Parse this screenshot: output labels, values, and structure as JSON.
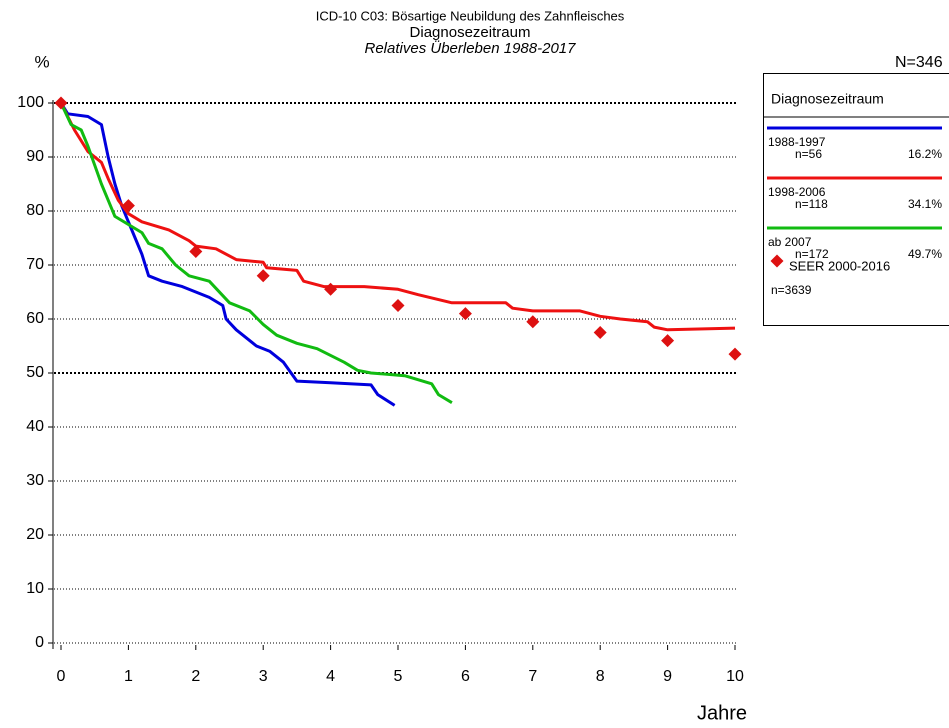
{
  "chart_data": {
    "type": "line",
    "title": "ICD-10 C03: Bösartige Neubildung des Zahnfleisches",
    "subtitle": "Diagnosezeitraum",
    "subtitle2": "Relatives Überleben 1988-2017",
    "y_label": "%",
    "x_label": "Jahre",
    "total_label": "N=346",
    "legend_title": "Diagnosezeitraum",
    "xlim": [
      0,
      10
    ],
    "ylim": [
      0,
      100
    ],
    "xticks": [
      0,
      1,
      2,
      3,
      4,
      5,
      6,
      7,
      8,
      9,
      10
    ],
    "yticks": [
      0,
      10,
      20,
      30,
      40,
      50,
      60,
      70,
      80,
      90,
      100
    ],
    "grid": true,
    "major_grid_lines": [
      50,
      100
    ],
    "series": [
      {
        "name": "1988-1997",
        "n_label": "n=56",
        "share_label": "16.2%",
        "color": "#0000dd",
        "x": [
          0,
          0.1,
          0.4,
          0.6,
          0.7,
          0.8,
          0.9,
          1.0,
          1.1,
          1.2,
          1.3,
          1.5,
          1.8,
          2.2,
          2.4,
          2.45,
          2.6,
          2.9,
          3.1,
          3.3,
          3.5,
          4.0,
          4.6,
          4.7,
          4.95
        ],
        "values": [
          100,
          98,
          97.5,
          96,
          90,
          85,
          81,
          78,
          75,
          72,
          68,
          67,
          66,
          64,
          62.5,
          60,
          58,
          55,
          54,
          52,
          48.5,
          48.2,
          47.8,
          46,
          44
        ]
      },
      {
        "name": "1998-2006",
        "n_label": "n=118",
        "share_label": "34.1%",
        "color": "#ee1111",
        "x": [
          0,
          0.2,
          0.4,
          0.6,
          0.7,
          0.85,
          1.0,
          1.2,
          1.6,
          1.9,
          2.0,
          2.3,
          2.6,
          3.0,
          3.05,
          3.5,
          3.6,
          3.9,
          4.5,
          5.0,
          5.3,
          5.8,
          6.6,
          6.7,
          7.0,
          7.7,
          8.0,
          8.3,
          8.7,
          8.8,
          9.0,
          10.0
        ],
        "values": [
          100,
          95,
          91,
          89,
          86,
          82,
          79.5,
          78,
          76.5,
          74.5,
          73.5,
          73,
          71,
          70.5,
          69.5,
          69,
          67,
          66,
          66,
          65.5,
          64.5,
          63,
          63,
          62,
          61.5,
          61.5,
          60.5,
          60,
          59.5,
          58.5,
          58,
          58.3
        ]
      },
      {
        "name": "ab 2007",
        "n_label": "n=172",
        "share_label": "49.7%",
        "color": "#11bb11",
        "x": [
          0,
          0.15,
          0.3,
          0.4,
          0.6,
          0.7,
          0.8,
          1.0,
          1.2,
          1.3,
          1.5,
          1.7,
          1.9,
          2.2,
          2.5,
          2.8,
          3.0,
          3.2,
          3.5,
          3.8,
          4.2,
          4.4,
          4.6,
          5.1,
          5.5,
          5.6,
          5.8
        ],
        "values": [
          100,
          96,
          95,
          92,
          85,
          82,
          79,
          77.5,
          76,
          74,
          73,
          70,
          68,
          67,
          63,
          61.5,
          59,
          57,
          55.5,
          54.5,
          52,
          50.5,
          50,
          49.5,
          48,
          46,
          44.5
        ]
      },
      {
        "name": "SEER 2000-2016",
        "n_label": "n=3639",
        "color": "#dd1111",
        "marker": "diamond",
        "x": [
          0,
          1,
          2,
          3,
          4,
          5,
          6,
          7,
          8,
          9,
          10
        ],
        "values": [
          100,
          81,
          72.5,
          68,
          65.5,
          62.5,
          61,
          59.5,
          57.5,
          56,
          53.5
        ]
      }
    ]
  }
}
